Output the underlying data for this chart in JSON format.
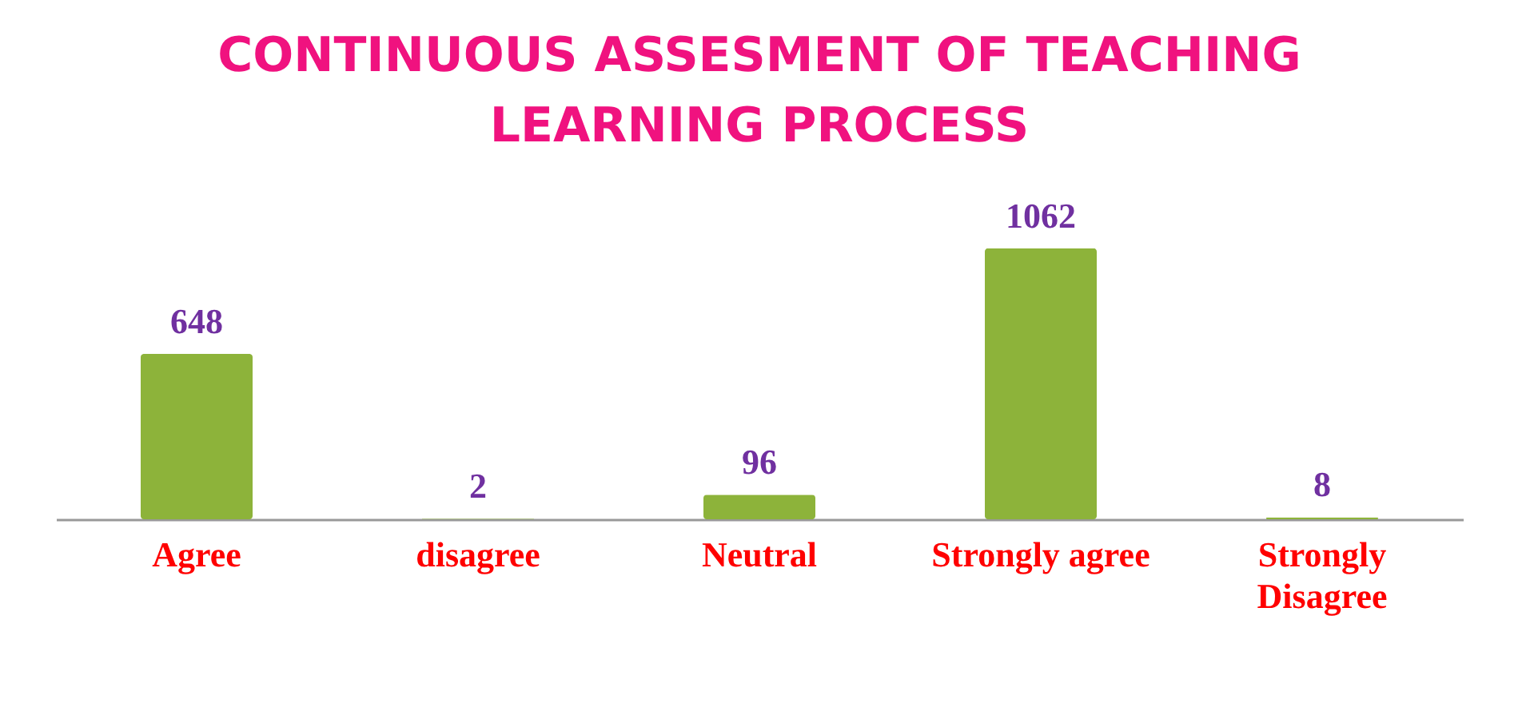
{
  "chart_data": {
    "type": "bar",
    "title": "CONTINUOUS ASSESMENT OF TEACHING LEARNING PROCESS",
    "categories": [
      "Agree",
      "disagree",
      "Neutral",
      "Strongly agree",
      "Strongly Disagree"
    ],
    "values": [
      648,
      2,
      96,
      1062,
      8
    ],
    "color": "#8db33a",
    "data_labels": true
  }
}
